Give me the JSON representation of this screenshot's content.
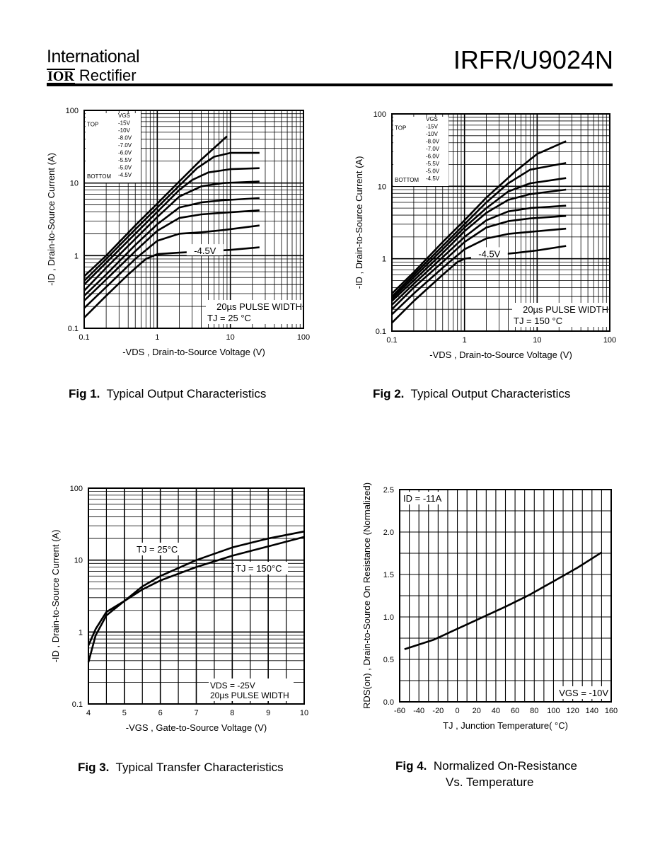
{
  "header": {
    "company_line1": "International",
    "company_logo_letters": "IOR",
    "company_line2": "Rectifier",
    "part_number": "IRFR/U9024N"
  },
  "captions": [
    {
      "label": "Fig 1.",
      "text": "Typical Output Characteristics"
    },
    {
      "label": "Fig 2.",
      "text": "Typical Output Characteristics"
    },
    {
      "label": "Fig 3.",
      "text": "Typical Transfer Characteristics"
    },
    {
      "label": "Fig 4.",
      "text": "Normalized On-Resistance",
      "text2": "Vs. Temperature"
    }
  ],
  "chart_data": [
    {
      "type": "line",
      "xscale": "log",
      "yscale": "log",
      "xlim": [
        0.1,
        100
      ],
      "ylim": [
        0.1,
        100
      ],
      "xticks": [
        "0.1",
        "1",
        "10",
        "100"
      ],
      "yticks": [
        "0.1",
        "1",
        "10",
        "100"
      ],
      "xlabel": "-VDS , Drain-to-Source Voltage (V)",
      "ylabel": "-ID , Drain-to-Source Current (A)",
      "legend": {
        "header": "VGS",
        "top": "TOP",
        "bottom": "BOTTOM",
        "entries": [
          "-15V",
          "-10V",
          "-8.0V",
          "-7.0V",
          "-6.0V",
          "-5.5V",
          "-5.0V",
          "-4.5V"
        ]
      },
      "curve_label": "-4.5V",
      "annotations": [
        "20µs PULSE WIDTH",
        "TJ = 25 °C"
      ],
      "series": [
        {
          "x": [
            0.1,
            0.2,
            0.5,
            1,
            2,
            4,
            9
          ],
          "y": [
            0.52,
            1.0,
            2.6,
            5.2,
            10.5,
            21,
            44
          ]
        },
        {
          "x": [
            0.1,
            0.2,
            0.5,
            1,
            2,
            3.5,
            6,
            10,
            25
          ],
          "y": [
            0.45,
            0.9,
            2.3,
            4.6,
            9.2,
            16,
            23,
            26,
            26
          ]
        },
        {
          "x": [
            0.1,
            0.2,
            0.5,
            1,
            2,
            3,
            5,
            10,
            25
          ],
          "y": [
            0.4,
            0.8,
            2.0,
            4.0,
            8.0,
            11,
            14,
            15.5,
            16
          ]
        },
        {
          "x": [
            0.1,
            0.2,
            0.5,
            1,
            2,
            4,
            8,
            25
          ],
          "y": [
            0.33,
            0.68,
            1.7,
            3.4,
            6.5,
            9,
            10,
            10.5
          ]
        },
        {
          "x": [
            0.1,
            0.2,
            0.5,
            1,
            2,
            4,
            8,
            25
          ],
          "y": [
            0.28,
            0.55,
            1.4,
            2.7,
            4.6,
            5.4,
            5.8,
            6.2
          ]
        },
        {
          "x": [
            0.1,
            0.2,
            0.5,
            1,
            2,
            4,
            8,
            25
          ],
          "y": [
            0.24,
            0.47,
            1.15,
            2.2,
            3.3,
            3.7,
            3.9,
            4.2
          ]
        },
        {
          "x": [
            0.1,
            0.2,
            0.5,
            1,
            2,
            4,
            8,
            25
          ],
          "y": [
            0.19,
            0.37,
            0.9,
            1.6,
            2.0,
            2.1,
            2.25,
            2.6
          ]
        },
        {
          "x": [
            0.1,
            0.2,
            0.4,
            0.7,
            1,
            2,
            5,
            10,
            25
          ],
          "y": [
            0.14,
            0.28,
            0.55,
            0.9,
            1.05,
            1.1,
            1.15,
            1.2,
            1.3
          ]
        }
      ]
    },
    {
      "type": "line",
      "xscale": "log",
      "yscale": "log",
      "xlim": [
        0.1,
        100
      ],
      "ylim": [
        0.1,
        100
      ],
      "xticks": [
        "0.1",
        "1",
        "10",
        "100"
      ],
      "yticks": [
        "0.1",
        "1",
        "10",
        "100"
      ],
      "xlabel": "-VDS , Drain-to-Source Voltage (V)",
      "ylabel": "-ID , Drain-to-Source Current (A)",
      "legend": {
        "header": "VGS",
        "top": "TOP",
        "bottom": "BOTTOM",
        "entries": [
          "-15V",
          "-10V",
          "-8.0V",
          "-7.0V",
          "-6.0V",
          "-5.5V",
          "-5.0V",
          "-4.5V"
        ]
      },
      "curve_label": "-4.5V",
      "annotations": [
        "20µs PULSE WIDTH",
        "TJ = 150 °C"
      ],
      "series": [
        {
          "x": [
            0.1,
            0.2,
            0.5,
            1,
            2,
            5,
            10,
            25
          ],
          "y": [
            0.33,
            0.65,
            1.7,
            3.4,
            7,
            16,
            28,
            42
          ]
        },
        {
          "x": [
            0.1,
            0.2,
            0.5,
            1,
            2,
            4,
            8,
            25
          ],
          "y": [
            0.3,
            0.6,
            1.5,
            3.0,
            6,
            11,
            17,
            21
          ]
        },
        {
          "x": [
            0.1,
            0.2,
            0.5,
            1,
            2,
            4,
            8,
            25
          ],
          "y": [
            0.28,
            0.55,
            1.35,
            2.7,
            5,
            8.5,
            11,
            13
          ]
        },
        {
          "x": [
            0.1,
            0.2,
            0.5,
            1,
            2,
            4,
            8,
            25
          ],
          "y": [
            0.26,
            0.5,
            1.2,
            2.4,
            4.3,
            6.5,
            7.8,
            9
          ]
        },
        {
          "x": [
            0.1,
            0.2,
            0.5,
            1,
            2,
            4,
            8,
            25
          ],
          "y": [
            0.23,
            0.45,
            1.05,
            2.0,
            3.4,
            4.5,
            5,
            5.4
          ]
        },
        {
          "x": [
            0.1,
            0.2,
            0.5,
            1,
            2,
            4,
            8,
            25
          ],
          "y": [
            0.2,
            0.4,
            0.9,
            1.7,
            2.7,
            3.3,
            3.6,
            3.9
          ]
        },
        {
          "x": [
            0.1,
            0.2,
            0.5,
            1,
            2,
            4,
            8,
            25
          ],
          "y": [
            0.17,
            0.33,
            0.75,
            1.35,
            1.9,
            2.2,
            2.35,
            2.6
          ]
        },
        {
          "x": [
            0.1,
            0.2,
            0.5,
            0.8,
            1,
            2,
            5,
            10,
            25
          ],
          "y": [
            0.13,
            0.26,
            0.6,
            0.9,
            1.0,
            1.1,
            1.2,
            1.3,
            1.5
          ]
        }
      ]
    },
    {
      "type": "line",
      "xscale": "linear",
      "yscale": "log",
      "xlim": [
        4,
        10
      ],
      "ylim": [
        0.1,
        100
      ],
      "xticks": [
        "4",
        "5",
        "6",
        "7",
        "8",
        "9",
        "10"
      ],
      "yticks": [
        "0.1",
        "1",
        "10",
        "100"
      ],
      "xlabel": "-VGS , Gate-to-Source Voltage (V)",
      "ylabel": "-ID , Drain-to-Source Current (A)",
      "annotations": [
        "VDS = -25V",
        "20µs PULSE WIDTH"
      ],
      "series": [
        {
          "name": "TJ = 25°C",
          "x": [
            4,
            4.2,
            4.5,
            5,
            5.5,
            6,
            7,
            8,
            9,
            10
          ],
          "y": [
            0.38,
            0.9,
            1.7,
            2.7,
            3.9,
            5.2,
            8,
            11.5,
            15.5,
            21
          ]
        },
        {
          "name": "TJ = 150°C",
          "x": [
            4,
            4.2,
            4.5,
            5,
            5.5,
            6,
            7,
            8,
            9,
            10
          ],
          "y": [
            0.65,
            1.1,
            1.9,
            2.7,
            4.3,
            6,
            10,
            15,
            20,
            25
          ]
        }
      ]
    },
    {
      "type": "line",
      "xscale": "linear",
      "yscale": "linear",
      "xlim": [
        -60,
        160
      ],
      "ylim": [
        0.0,
        2.5
      ],
      "xticks": [
        "-60",
        "-40",
        "-20",
        "0",
        "20",
        "40",
        "60",
        "80",
        "100",
        "120",
        "140",
        "160"
      ],
      "yticks": [
        "0.0",
        "0.5",
        "1.0",
        "1.5",
        "2.0",
        "2.5"
      ],
      "xlabel": "TJ , Junction Temperature( °C)",
      "ylabel": "RDS(on) , Drain-to-Source On Resistance (Normalized)",
      "annotations": [
        "ID = -11A",
        "VGS = -10V"
      ],
      "series": [
        {
          "x": [
            -55,
            -25,
            0,
            25,
            50,
            75,
            100,
            125,
            150
          ],
          "y": [
            0.62,
            0.73,
            0.86,
            0.99,
            1.12,
            1.26,
            1.42,
            1.58,
            1.76
          ]
        }
      ]
    }
  ]
}
